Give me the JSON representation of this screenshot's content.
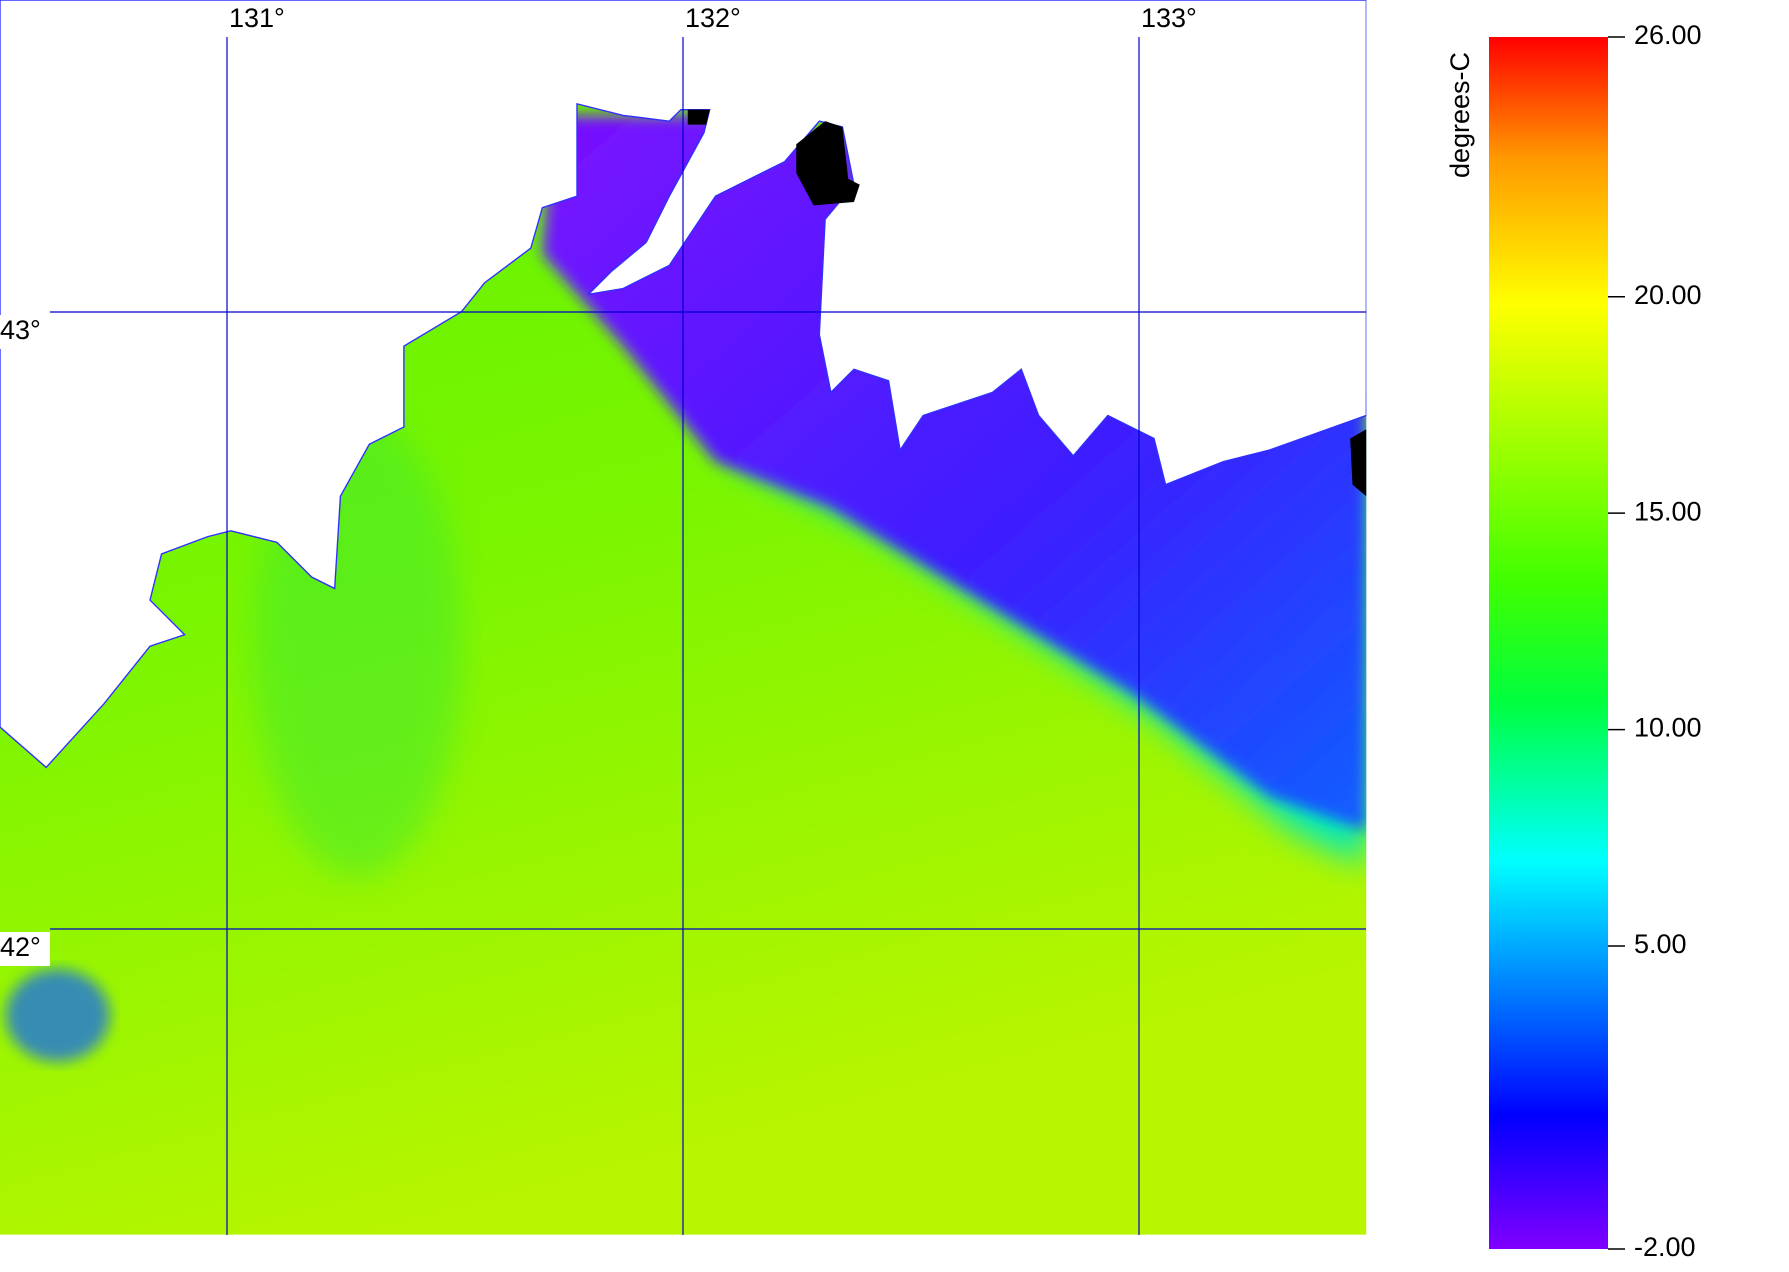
{
  "map": {
    "lon_ticks": [
      {
        "value": 131,
        "label": "131°"
      },
      {
        "value": 132,
        "label": "132°"
      },
      {
        "value": 133,
        "label": "133°"
      }
    ],
    "lat_ticks": [
      {
        "value": 43,
        "label": "43°"
      },
      {
        "value": 42,
        "label": "42°"
      }
    ],
    "colorbar": {
      "label": "degrees-C",
      "ticks": [
        {
          "value": 26,
          "label": "26.00"
        },
        {
          "value": 20,
          "label": "20.00"
        },
        {
          "value": 15,
          "label": "15.00"
        },
        {
          "value": 10,
          "label": "10.00"
        },
        {
          "value": 5,
          "label": "5.00"
        },
        {
          "value": -2,
          "label": "-2.00"
        }
      ]
    }
  }
}
